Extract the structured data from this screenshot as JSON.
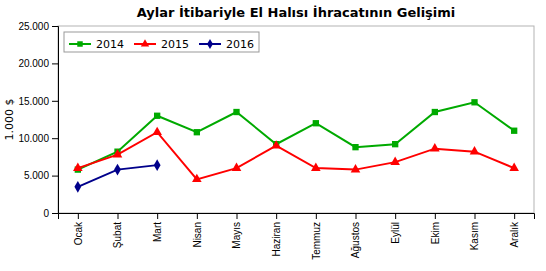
{
  "chart_data": {
    "type": "line",
    "title": "Aylar İtibariyle El Halısı İhracatının Gelişimi",
    "ylabel": "1.000 $",
    "categories": [
      "Ocak",
      "Şubat",
      "Mart",
      "Nisan",
      "Mayıs",
      "Haziran",
      "Temmuz",
      "Ağustos",
      "Eylül",
      "Ekim",
      "Kasım",
      "Aralık"
    ],
    "series": [
      {
        "name": "2014",
        "color": "#00aa00",
        "marker": "square",
        "values": [
          5800,
          8200,
          13000,
          10800,
          13500,
          9200,
          12000,
          8800,
          9200,
          13500,
          14800,
          11000
        ]
      },
      {
        "name": "2015",
        "color": "#ff0000",
        "marker": "triangle",
        "values": [
          6000,
          7800,
          10800,
          4500,
          6000,
          9000,
          6000,
          5800,
          6800,
          8600,
          8200,
          6000
        ]
      },
      {
        "name": "2016",
        "color": "#00008B",
        "marker": "diamond",
        "values": [
          3500,
          5800,
          6400,
          null,
          null,
          null,
          null,
          null,
          null,
          null,
          null,
          null
        ]
      }
    ],
    "ylim": [
      0,
      25000
    ],
    "yticks": [
      0,
      {
        "value": 5000,
        "label": "5.000"
      },
      {
        "value": 10000,
        "label": "10.000"
      },
      {
        "value": 15000,
        "label": "15.000"
      },
      {
        "value": 20000,
        "label": "20.000"
      },
      {
        "value": 25000,
        "label": "25.000"
      }
    ],
    "grid": false,
    "legend": "upper left"
  }
}
